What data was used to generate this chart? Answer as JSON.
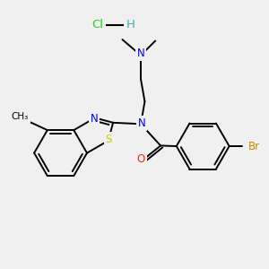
{
  "bg_color": "#f0f0f0",
  "fig_size": [
    3.0,
    3.0
  ],
  "dpi": 100,
  "atom_colors": {
    "N": "#0000ee",
    "O": "#ff2200",
    "S": "#cccc00",
    "Br": "#cc8800",
    "Cl": "#22cc22",
    "H_salt": "#44aaaa",
    "C": "#000000"
  },
  "bond_color": "#000000",
  "bond_width": 1.4,
  "font_size_atom": 8.5,
  "font_size_small": 7.5,
  "font_size_title": 9.5
}
